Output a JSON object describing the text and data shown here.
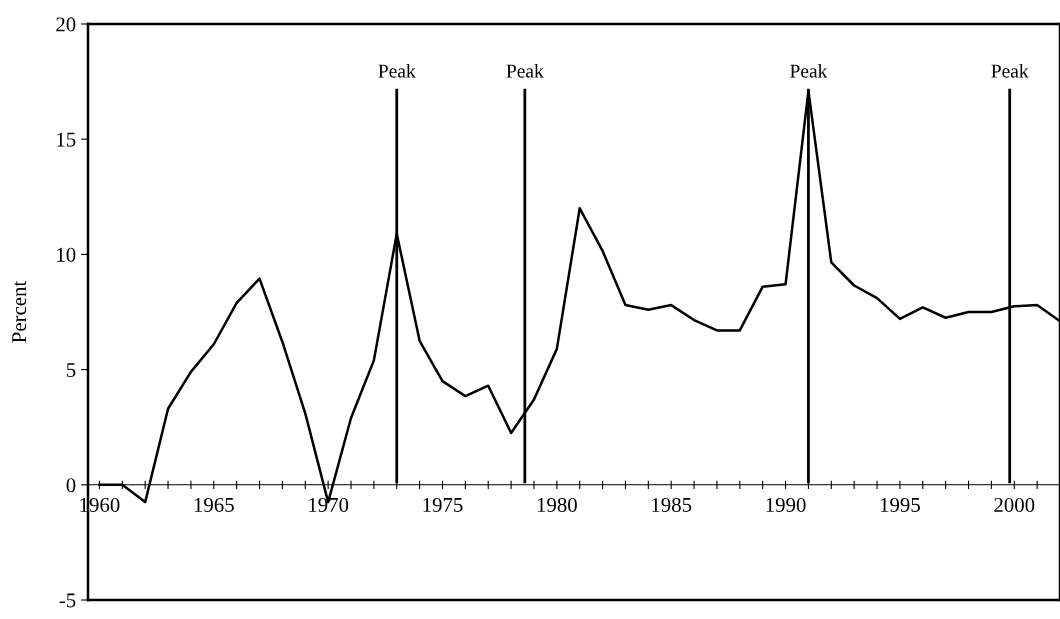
{
  "chart_data": {
    "type": "line",
    "ylabel": "Percent",
    "x": [
      1960,
      1961,
      1962,
      1963,
      1964,
      1965,
      1966,
      1967,
      1968,
      1969,
      1970,
      1971,
      1972,
      1973,
      1974,
      1975,
      1976,
      1977,
      1978,
      1979,
      1980,
      1981,
      1982,
      1983,
      1984,
      1985,
      1986,
      1987,
      1988,
      1989,
      1990,
      1991,
      1992,
      1993,
      1994,
      1995,
      1996,
      1997,
      1998,
      1999,
      2000,
      2001,
      2002
    ],
    "series": [
      {
        "color": "#000000",
        "values": [
          0,
          0,
          -0.75,
          3.3,
          4.9,
          6.1,
          7.9,
          8.95,
          6.2,
          3.1,
          -0.75,
          2.9,
          5.4,
          10.9,
          6.25,
          4.5,
          3.85,
          4.3,
          2.25,
          3.7,
          5.9,
          12.0,
          10.15,
          7.8,
          7.6,
          7.8,
          7.15,
          6.7,
          6.7,
          8.6,
          8.7,
          17.1,
          9.65,
          8.65,
          8.1,
          7.2,
          7.7,
          7.25,
          7.5,
          7.5,
          7.75,
          7.8,
          7.1
        ]
      }
    ],
    "xlim": [
      1959.5,
      2002
    ],
    "xticks": [
      1960,
      {
        "value": 1961,
        "label": null
      },
      {
        "value": 1962,
        "label": null
      },
      {
        "value": 1963,
        "label": null
      },
      {
        "value": 1964,
        "label": null
      },
      1965,
      {
        "value": 1966,
        "label": null
      },
      {
        "value": 1967,
        "label": null
      },
      {
        "value": 1968,
        "label": null
      },
      {
        "value": 1969,
        "label": null
      },
      1970,
      {
        "value": 1971,
        "label": null
      },
      {
        "value": 1972,
        "label": null
      },
      {
        "value": 1973,
        "label": null
      },
      {
        "value": 1974,
        "label": null
      },
      1975,
      {
        "value": 1976,
        "label": null
      },
      {
        "value": 1977,
        "label": null
      },
      {
        "value": 1978,
        "label": null
      },
      {
        "value": 1979,
        "label": null
      },
      1980,
      {
        "value": 1981,
        "label": null
      },
      {
        "value": 1982,
        "label": null
      },
      {
        "value": 1983,
        "label": null
      },
      {
        "value": 1984,
        "label": null
      },
      1985,
      {
        "value": 1986,
        "label": null
      },
      {
        "value": 1987,
        "label": null
      },
      {
        "value": 1988,
        "label": null
      },
      {
        "value": 1989,
        "label": null
      },
      1990,
      {
        "value": 1991,
        "label": null
      },
      {
        "value": 1992,
        "label": null
      },
      {
        "value": 1993,
        "label": null
      },
      {
        "value": 1994,
        "label": null
      },
      1995,
      {
        "value": 1996,
        "label": null
      },
      {
        "value": 1997,
        "label": null
      },
      {
        "value": 1998,
        "label": null
      },
      {
        "value": 1999,
        "label": null
      },
      2000,
      {
        "value": 2001,
        "label": null
      }
    ],
    "ylim": [
      -5,
      20
    ],
    "yticks": [
      -5,
      0,
      5,
      10,
      15,
      20
    ],
    "ref_lines": [
      {
        "axis": "x",
        "value": 1973.0,
        "label": "Peak",
        "color": "#000000"
      },
      {
        "axis": "x",
        "value": 1978.6,
        "label": "Peak",
        "color": "#000000"
      },
      {
        "axis": "x",
        "value": 1991.0,
        "label": "Peak",
        "color": "#000000"
      },
      {
        "axis": "x",
        "value": 1999.8,
        "label": "Peak",
        "color": "#000000"
      }
    ],
    "grid": false,
    "legend": false,
    "marker": "none",
    "line_style": "solid"
  }
}
